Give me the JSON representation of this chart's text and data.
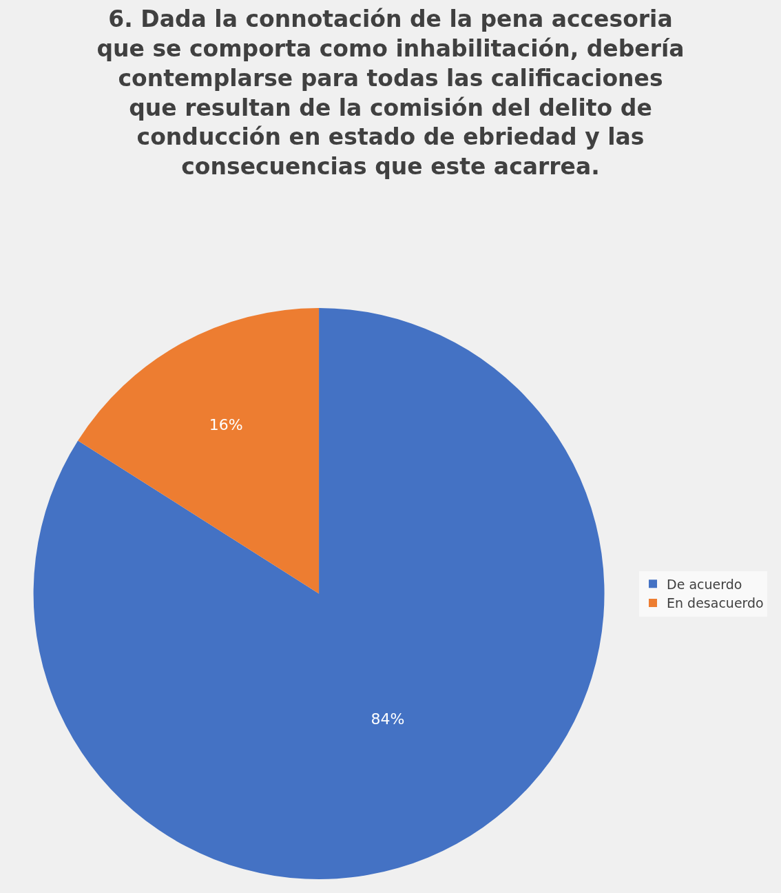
{
  "chart_data": {
    "type": "pie",
    "title": "6. Dada la connotación de la pena accesoria que se comporta como inhabilitación, debería contemplarse para todas las calificaciones que resultan de la comisión del delito de conducción en estado de ebriedad y las consecuencias que este acarrea.",
    "categories": [
      "De acuerdo",
      "En desacuerdo"
    ],
    "values": [
      84,
      16
    ],
    "value_labels": [
      "84%",
      "16%"
    ],
    "colors": [
      "#4472c4",
      "#ed7d31"
    ],
    "legend": "right"
  }
}
